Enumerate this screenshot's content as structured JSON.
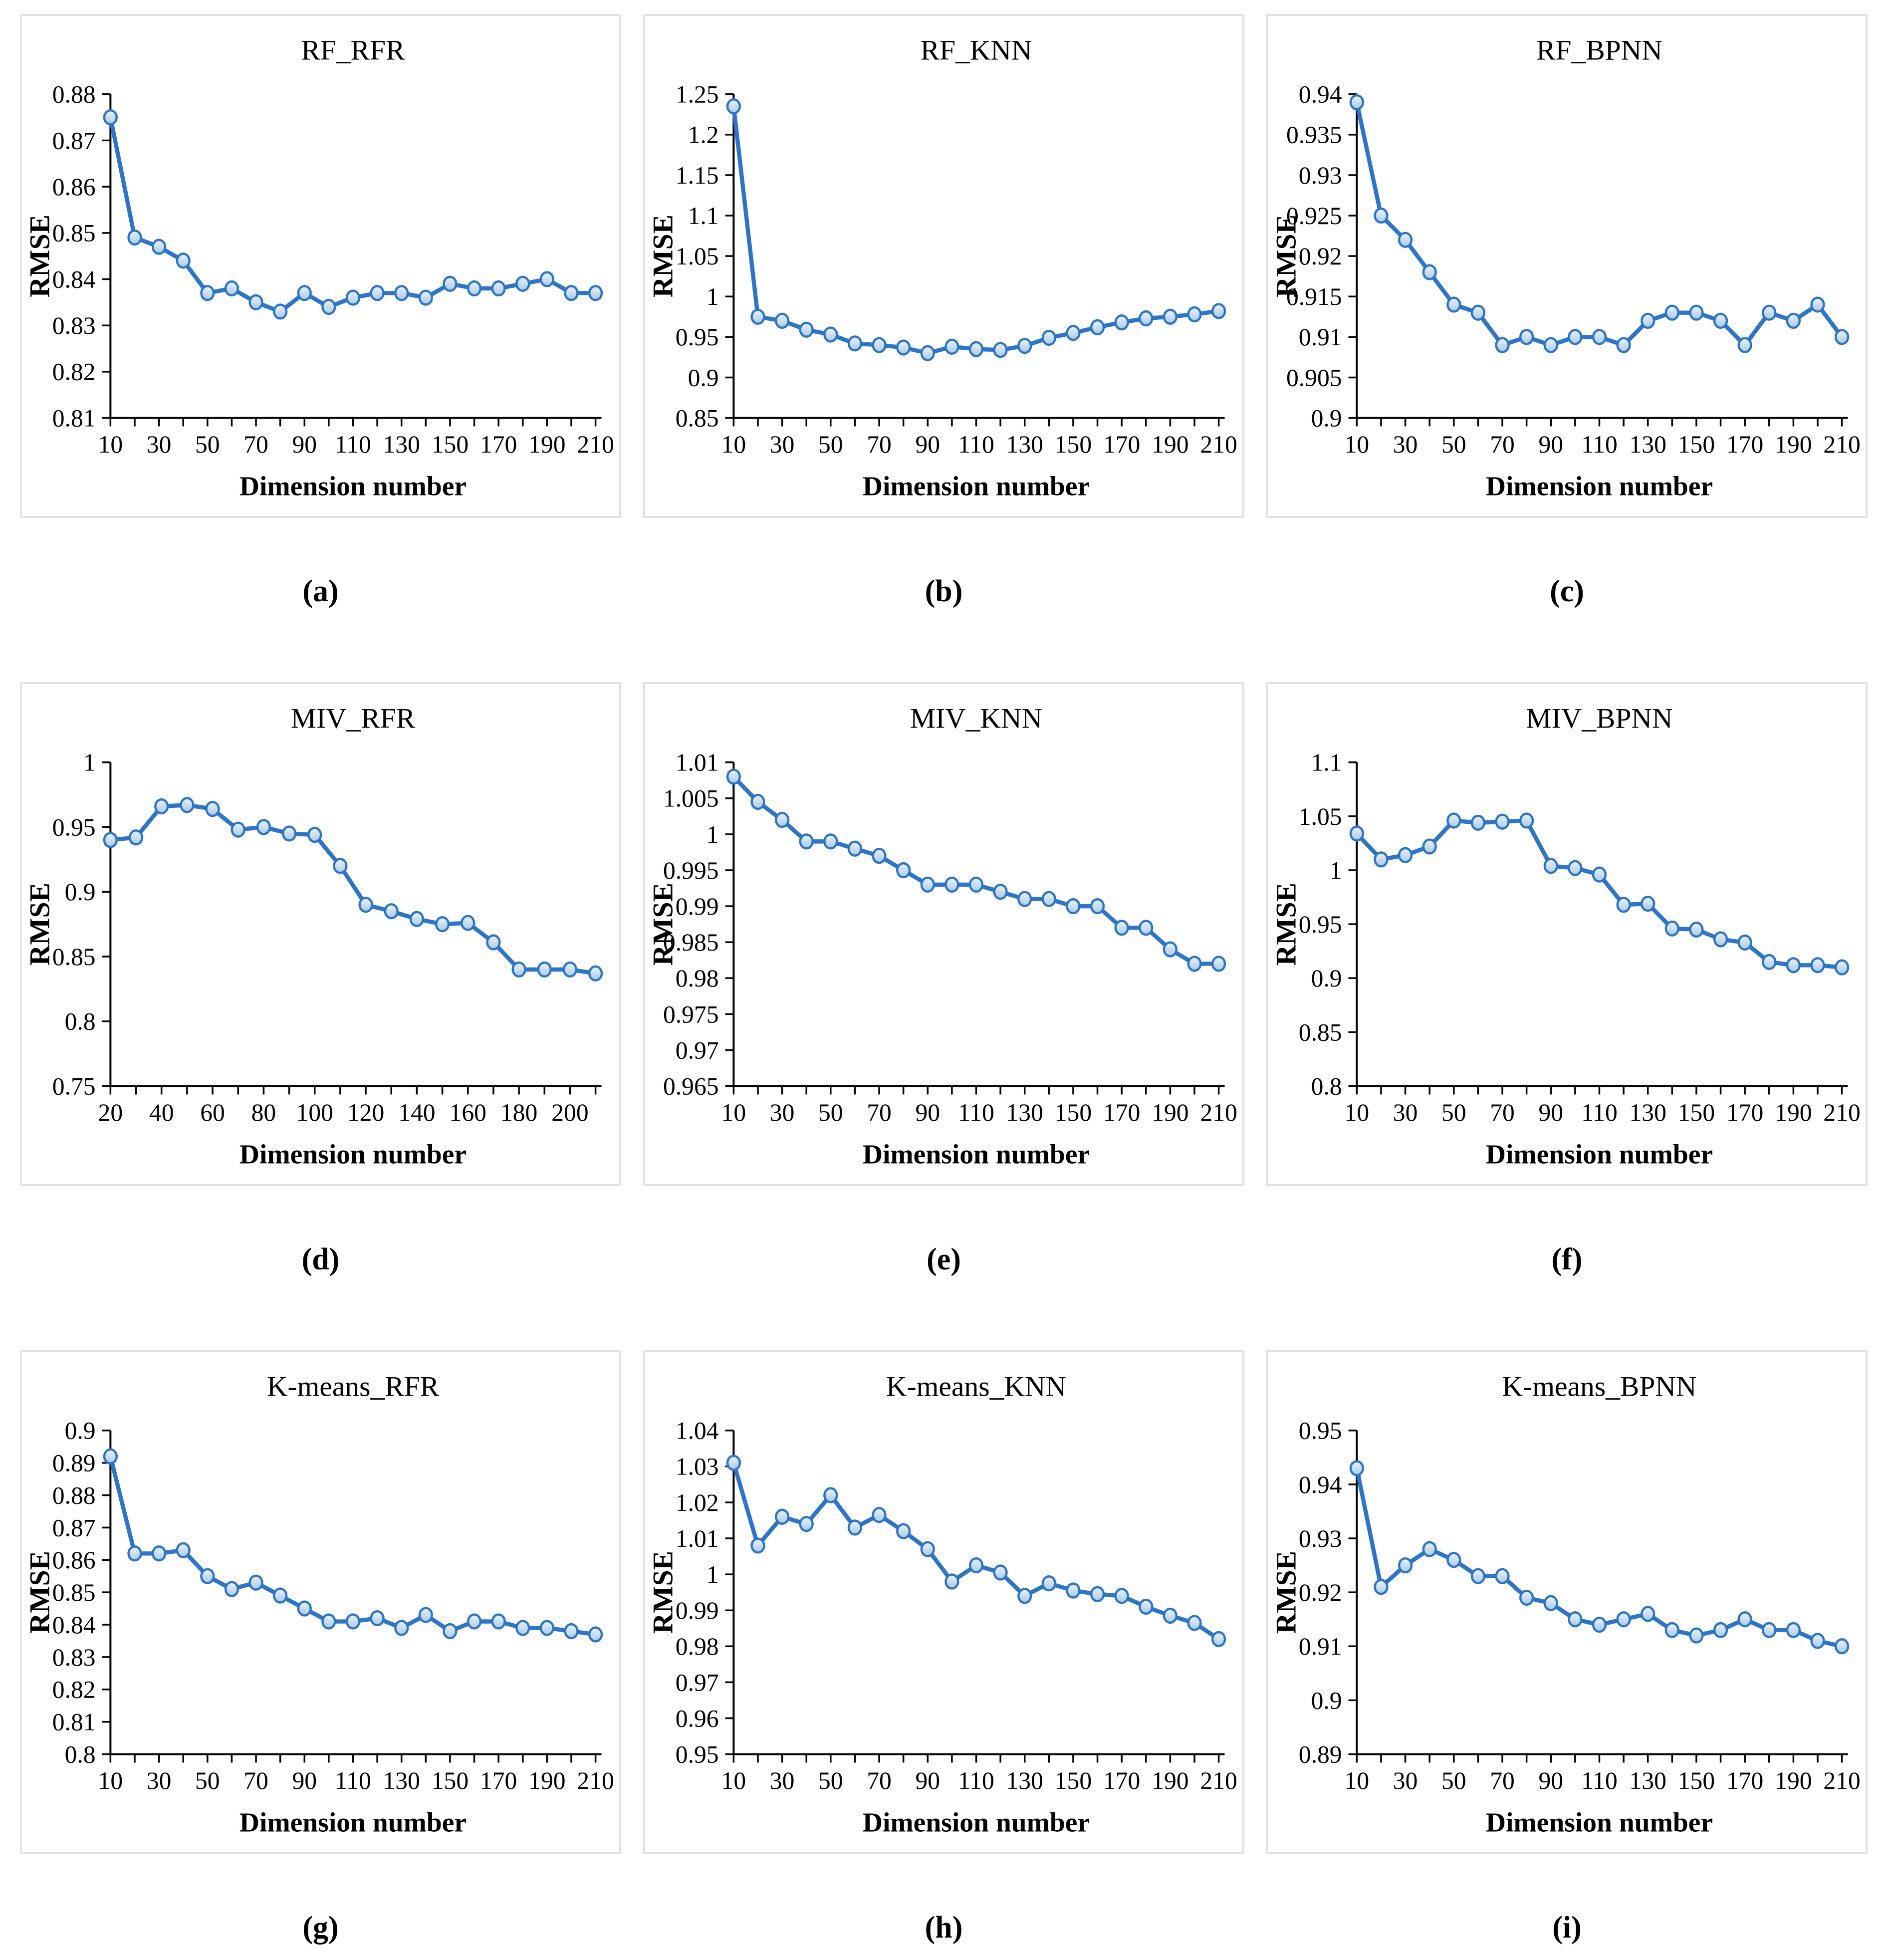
{
  "page": {
    "background": "#ffffff",
    "figure_type": "3x3 grid of line charts comparing RMSE vs dimension number"
  },
  "colors": {
    "line": "#2e75c6",
    "marker_stroke": "#2e75c6",
    "marker_fill_top": "#eaf2fb",
    "marker_fill_bottom": "#a9cbe9",
    "axis": "#000000",
    "panel_border": "#e2e2e2"
  },
  "captions": [
    "(a)",
    "(b)",
    "(c)",
    "(d)",
    "(e)",
    "(f)",
    "(g)",
    "(h)",
    "(i)"
  ],
  "chart_data": [
    {
      "type": "line",
      "caption": "(a)",
      "title": "RF_RFR",
      "xlabel": "Dimension number",
      "ylabel": "RMSE",
      "ylim": [
        0.81,
        0.88
      ],
      "ytick_step": 0.01,
      "grid": false,
      "legend": "none",
      "x": [
        10,
        20,
        30,
        40,
        50,
        60,
        70,
        80,
        90,
        100,
        110,
        120,
        130,
        140,
        150,
        160,
        170,
        180,
        190,
        200,
        210
      ],
      "values": [
        0.875,
        0.849,
        0.847,
        0.844,
        0.837,
        0.838,
        0.835,
        0.833,
        0.837,
        0.834,
        0.836,
        0.837,
        0.837,
        0.836,
        0.839,
        0.838,
        0.838,
        0.839,
        0.84,
        0.837,
        0.837
      ]
    },
    {
      "type": "line",
      "caption": "(b)",
      "title": "RF_KNN",
      "xlabel": "Dimension number",
      "ylabel": "RMSE",
      "ylim": [
        0.85,
        1.25
      ],
      "ytick_step": 0.05,
      "grid": false,
      "legend": "none",
      "x": [
        10,
        20,
        30,
        40,
        50,
        60,
        70,
        80,
        90,
        100,
        110,
        120,
        130,
        140,
        150,
        160,
        170,
        180,
        190,
        200,
        210
      ],
      "values": [
        1.235,
        0.975,
        0.97,
        0.959,
        0.953,
        0.942,
        0.94,
        0.937,
        0.93,
        0.938,
        0.935,
        0.934,
        0.939,
        0.949,
        0.955,
        0.962,
        0.968,
        0.973,
        0.975,
        0.978,
        0.982
      ]
    },
    {
      "type": "line",
      "caption": "(c)",
      "title": "RF_BPNN",
      "xlabel": "Dimension number",
      "ylabel": "RMSE",
      "ylim": [
        0.9,
        0.94
      ],
      "ytick_step": 0.005,
      "grid": false,
      "legend": "none",
      "x": [
        10,
        20,
        30,
        40,
        50,
        60,
        70,
        80,
        90,
        100,
        110,
        120,
        130,
        140,
        150,
        160,
        170,
        180,
        190,
        200,
        210
      ],
      "values": [
        0.939,
        0.925,
        0.922,
        0.918,
        0.914,
        0.913,
        0.909,
        0.91,
        0.909,
        0.91,
        0.91,
        0.909,
        0.912,
        0.913,
        0.913,
        0.912,
        0.909,
        0.913,
        0.912,
        0.914,
        0.91
      ]
    },
    {
      "type": "line",
      "caption": "(d)",
      "title": "MIV_RFR",
      "xlabel": "Dimension number",
      "ylabel": "RMSE",
      "ylim": [
        0.75,
        1.0
      ],
      "ytick_step": 0.05,
      "grid": false,
      "legend": "none",
      "x": [
        20,
        30,
        40,
        50,
        60,
        70,
        80,
        90,
        100,
        110,
        120,
        130,
        140,
        150,
        160,
        170,
        180,
        190,
        200,
        210
      ],
      "values": [
        0.94,
        0.942,
        0.966,
        0.967,
        0.964,
        0.948,
        0.95,
        0.945,
        0.944,
        0.92,
        0.89,
        0.885,
        0.879,
        0.875,
        0.876,
        0.861,
        0.84,
        0.84,
        0.84,
        0.837
      ]
    },
    {
      "type": "line",
      "caption": "(e)",
      "title": "MIV_KNN",
      "xlabel": "Dimension number",
      "ylabel": "RMSE",
      "ylim": [
        0.965,
        1.01
      ],
      "ytick_step": 0.005,
      "grid": false,
      "legend": "none",
      "x": [
        10,
        20,
        30,
        40,
        50,
        60,
        70,
        80,
        90,
        100,
        110,
        120,
        130,
        140,
        150,
        160,
        170,
        180,
        190,
        200,
        210
      ],
      "values": [
        1.008,
        1.0045,
        1.002,
        0.999,
        0.999,
        0.998,
        0.997,
        0.995,
        0.993,
        0.993,
        0.993,
        0.992,
        0.991,
        0.991,
        0.99,
        0.99,
        0.987,
        0.987,
        0.984,
        0.982,
        0.982
      ]
    },
    {
      "type": "line",
      "caption": "(f)",
      "title": "MIV_BPNN",
      "xlabel": "Dimension number",
      "ylabel": "RMSE",
      "ylim": [
        0.8,
        1.1
      ],
      "ytick_step": 0.05,
      "grid": false,
      "legend": "none",
      "x": [
        10,
        20,
        30,
        40,
        50,
        60,
        70,
        80,
        90,
        100,
        110,
        120,
        130,
        140,
        150,
        160,
        170,
        180,
        190,
        200,
        210
      ],
      "values": [
        1.034,
        1.01,
        1.014,
        1.022,
        1.046,
        1.044,
        1.045,
        1.046,
        1.004,
        1.002,
        0.996,
        0.968,
        0.969,
        0.946,
        0.945,
        0.936,
        0.933,
        0.915,
        0.912,
        0.912,
        0.91
      ]
    },
    {
      "type": "line",
      "caption": "(g)",
      "title": "K-means_RFR",
      "xlabel": "Dimension number",
      "ylabel": "RMSE",
      "ylim": [
        0.8,
        0.9
      ],
      "ytick_step": 0.01,
      "grid": false,
      "legend": "none",
      "x": [
        10,
        20,
        30,
        40,
        50,
        60,
        70,
        80,
        90,
        100,
        110,
        120,
        130,
        140,
        150,
        160,
        170,
        180,
        190,
        200,
        210
      ],
      "values": [
        0.892,
        0.862,
        0.862,
        0.863,
        0.855,
        0.851,
        0.853,
        0.849,
        0.845,
        0.841,
        0.841,
        0.842,
        0.839,
        0.843,
        0.838,
        0.841,
        0.841,
        0.839,
        0.839,
        0.838,
        0.837
      ]
    },
    {
      "type": "line",
      "caption": "(h)",
      "title": "K-means_KNN",
      "xlabel": "Dimension number",
      "ylabel": "RMSE",
      "ylim": [
        0.95,
        1.04
      ],
      "ytick_step": 0.01,
      "grid": false,
      "legend": "none",
      "x": [
        10,
        20,
        30,
        40,
        50,
        60,
        70,
        80,
        90,
        100,
        110,
        120,
        130,
        140,
        150,
        160,
        170,
        180,
        190,
        200,
        210
      ],
      "values": [
        1.031,
        1.008,
        1.016,
        1.014,
        1.022,
        1.013,
        1.0165,
        1.012,
        1.007,
        0.998,
        1.0025,
        1.0005,
        0.994,
        0.9975,
        0.9955,
        0.9945,
        0.994,
        0.991,
        0.9885,
        0.9865,
        0.982
      ]
    },
    {
      "type": "line",
      "caption": "(i)",
      "title": "K-means_BPNN",
      "xlabel": "Dimension number",
      "ylabel": "RMSE",
      "ylim": [
        0.89,
        0.95
      ],
      "ytick_step": 0.01,
      "grid": false,
      "legend": "none",
      "x": [
        10,
        20,
        30,
        40,
        50,
        60,
        70,
        80,
        90,
        100,
        110,
        120,
        130,
        140,
        150,
        160,
        170,
        180,
        190,
        200,
        210
      ],
      "values": [
        0.943,
        0.921,
        0.925,
        0.928,
        0.926,
        0.923,
        0.923,
        0.919,
        0.918,
        0.915,
        0.914,
        0.915,
        0.916,
        0.913,
        0.912,
        0.913,
        0.915,
        0.913,
        0.913,
        0.911,
        0.91
      ]
    }
  ]
}
